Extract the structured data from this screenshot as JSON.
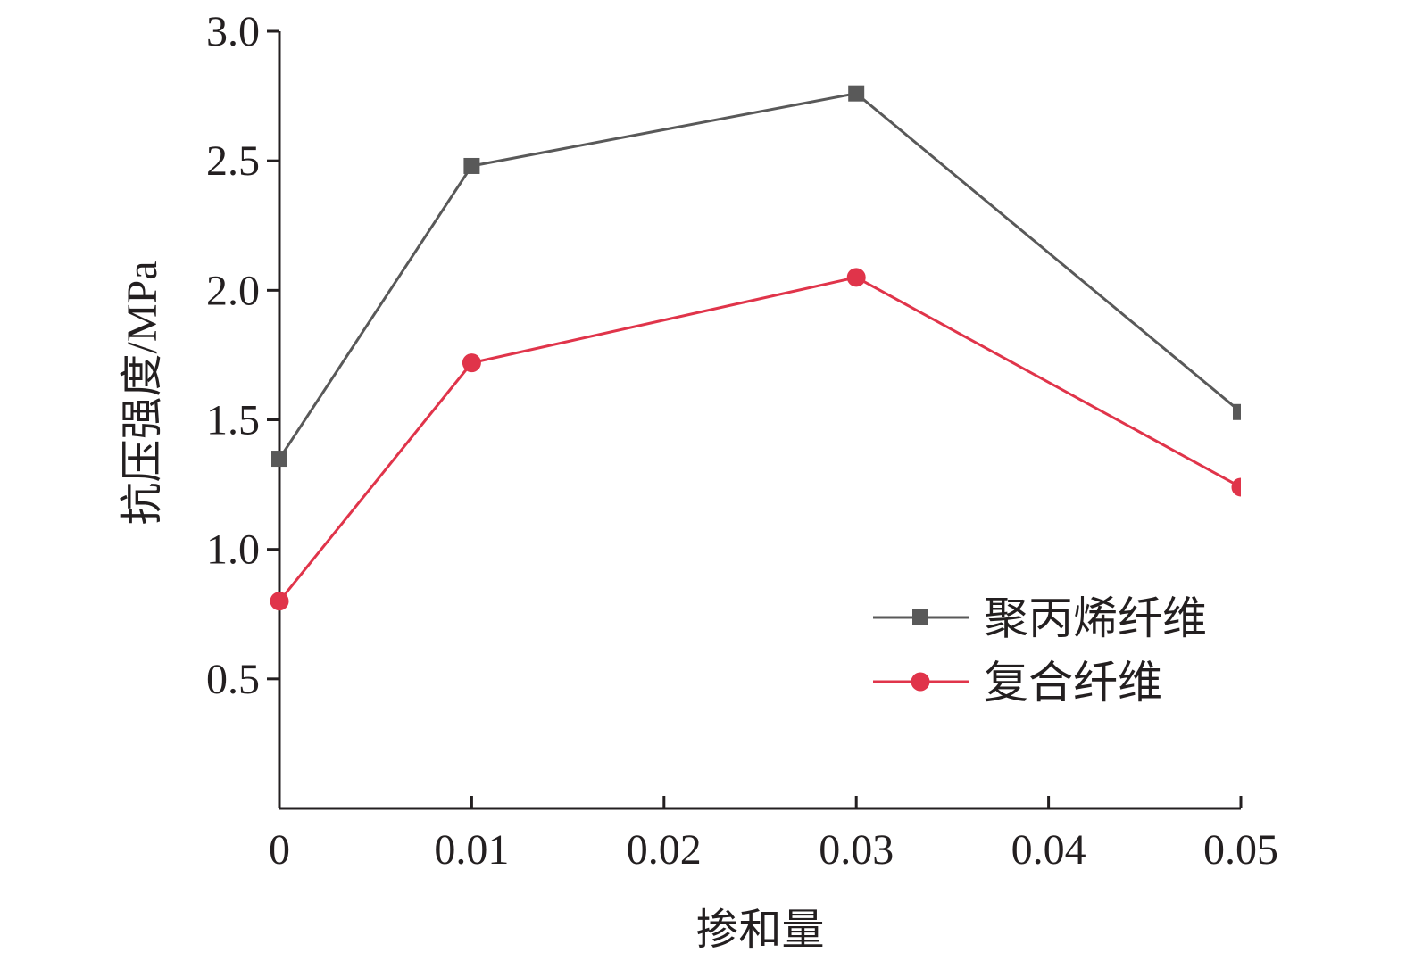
{
  "chart_data": {
    "type": "line",
    "title": "",
    "xlabel": "掺和量",
    "ylabel": "抗压强度/MPa",
    "x": [
      0,
      0.01,
      0.03,
      0.05
    ],
    "x_ticks": [
      "0",
      "0.01",
      "0.02",
      "0.03",
      "0.04",
      "0.05"
    ],
    "x_tick_values": [
      0,
      0.01,
      0.02,
      0.03,
      0.04,
      0.05
    ],
    "y_ticks": [
      "0.5",
      "1.0",
      "1.5",
      "2.0",
      "2.5",
      "3.0"
    ],
    "y_tick_values": [
      0.5,
      1.0,
      1.5,
      2.0,
      2.5,
      3.0
    ],
    "xlim": [
      0,
      0.05
    ],
    "ylim": [
      0,
      3.0
    ],
    "grid": false,
    "legend_position": "bottom-right",
    "series": [
      {
        "name": "聚丙烯纤维",
        "values": [
          1.35,
          2.48,
          2.76,
          1.53
        ],
        "color": "#595959",
        "marker": "square"
      },
      {
        "name": "复合纤维",
        "values": [
          0.8,
          1.72,
          2.05,
          1.24
        ],
        "color": "#e0344a",
        "marker": "circle"
      }
    ]
  }
}
